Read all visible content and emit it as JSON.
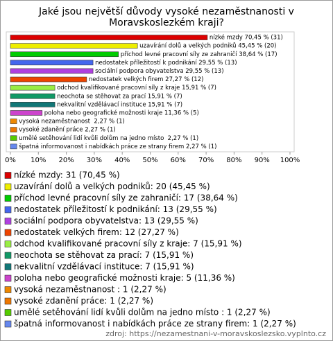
{
  "chart_data": {
    "type": "bar",
    "orientation": "horizontal",
    "title": [
      "Jaké jsou největší důvody vysoké nezaměstnanosti v",
      "Moravskoslezkém kraji?"
    ],
    "values": [
      70.45,
      45.45,
      38.64,
      29.55,
      29.55,
      27.27,
      15.91,
      15.91,
      15.91,
      11.36,
      2.27,
      2.27,
      2.27,
      2.27
    ],
    "value_labels": [
      "nízké mzdy 70,45 % (31)",
      "uzavírání dolů a velkých podniků 45,45 % (20)",
      "příchod levné pracovní síly ze zahraničí 38,64 % (17)",
      "nedostatek příležitostí k podnikání 29,55 % (13)",
      "sociální podpora obyvatelstva 29,55 % (13)",
      "nedostatek velkých firem 27,27 % (12)",
      "odchod kvalifikované pracovní síly z kraje 15,91 % (7)",
      "neochota se stěhovat za prací 15,91 % (7)",
      "nekvalitní vzdělávací instituce 15,91 % (7)",
      "poloha nebo geografické možnosti kraje 11,36 % (5)",
      "vysoká nezaměstnanost  2,27 % (1)",
      "vysoké zdanění práce 2,27 % (1)",
      "umělé setěhování lidí kvůli dolům na jedno místo  2,27 % (1)",
      "špatná informovanost i nabídkách práce ze strany firem 2,27 % (1)"
    ],
    "colors": [
      "#dd0000",
      "#eeee00",
      "#00cc00",
      "#4466ee",
      "#b040e0",
      "#ee4400",
      "#99ee44",
      "#119966",
      "#117777",
      "#cc44cc",
      "#ee8800",
      "#ee7700",
      "#55cc00",
      "#6688ee"
    ],
    "legend": [
      "nízké mzdy: 31 (70,45 %)",
      "uzavírání dolů a velkých podniků: 20 (45,45 %)",
      "příchod levné pracovní síly ze zahraničí: 17 (38,64 %)",
      "nedostatek příležitostí k podnikání: 13 (29,55 %)",
      "sociální podpora obyvatelstva: 13 (29,55 %)",
      "nedostatek velkých firem: 12 (27,27 %)",
      "odchod kvalifikované pracovní síly z kraje: 7 (15,91 %)",
      "neochota se stěhovat za prací: 7 (15,91 %)",
      "nekvalitní vzdělávací instituce: 7 (15,91 %)",
      "poloha nebo geografické možnosti kraje: 5 (11,36 %)",
      "vysoká nezaměstnanost : 1 (2,27 %)",
      "vysoké zdanění práce: 1 (2,27 %)",
      "umělé setěhování lidí kvůli dolům na jedno místo : 1 (2,27 %)",
      "špatná informovanost i nabídkách práce ze strany firem: 1 (2,27 %)"
    ],
    "xlim": [
      0,
      100
    ],
    "xticks": [
      {
        "value": 0,
        "label": "0%"
      },
      {
        "value": 10,
        "label": "10%"
      },
      {
        "value": 20,
        "label": "20%"
      },
      {
        "value": 30,
        "label": "30%"
      },
      {
        "value": 40,
        "label": "40%"
      },
      {
        "value": 50,
        "label": "50%"
      },
      {
        "value": 60,
        "label": "60%"
      },
      {
        "value": 70,
        "label": "70%"
      },
      {
        "value": 80,
        "label": "80%"
      },
      {
        "value": 90,
        "label": "90%"
      },
      {
        "value": 100,
        "label": "100%"
      }
    ],
    "source": "zdroj: https://nezamestnani-v-moravskoslezsko.vyplnto.cz"
  }
}
